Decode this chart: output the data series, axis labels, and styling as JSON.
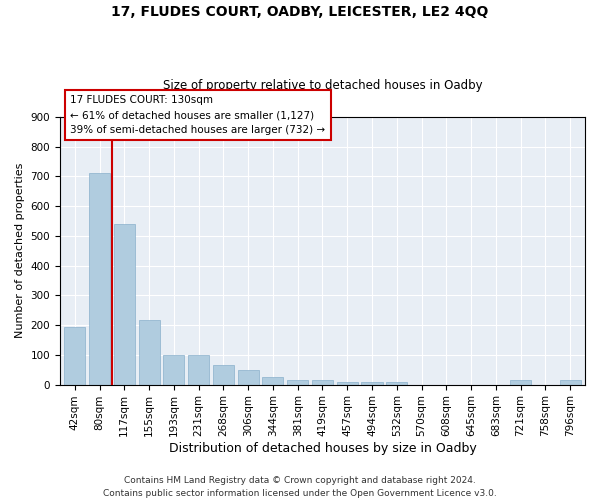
{
  "title1": "17, FLUDES COURT, OADBY, LEICESTER, LE2 4QQ",
  "title2": "Size of property relative to detached houses in Oadby",
  "xlabel": "Distribution of detached houses by size in Oadby",
  "ylabel": "Number of detached properties",
  "categories": [
    "42sqm",
    "80sqm",
    "117sqm",
    "155sqm",
    "193sqm",
    "231sqm",
    "268sqm",
    "306sqm",
    "344sqm",
    "381sqm",
    "419sqm",
    "457sqm",
    "494sqm",
    "532sqm",
    "570sqm",
    "608sqm",
    "645sqm",
    "683sqm",
    "721sqm",
    "758sqm",
    "796sqm"
  ],
  "values": [
    193,
    710,
    540,
    218,
    100,
    100,
    65,
    50,
    27,
    17,
    17,
    10,
    10,
    10,
    0,
    0,
    0,
    0,
    15,
    0,
    15
  ],
  "bar_color": "#b0ccdf",
  "bar_edge_color": "#8ab0cc",
  "vline_color": "#cc0000",
  "vline_x": 1.5,
  "annotation_text": "17 FLUDES COURT: 130sqm\n← 61% of detached houses are smaller (1,127)\n39% of semi-detached houses are larger (732) →",
  "annotation_edge_color": "#cc0000",
  "footer_line1": "Contains HM Land Registry data © Crown copyright and database right 2024.",
  "footer_line2": "Contains public sector information licensed under the Open Government Licence v3.0.",
  "plot_bg_color": "#e8eef5",
  "fig_bg_color": "#ffffff",
  "ylim_max": 900,
  "ytick_step": 100,
  "title1_fontsize": 10,
  "title2_fontsize": 8.5,
  "xlabel_fontsize": 9,
  "ylabel_fontsize": 8,
  "tick_fontsize": 7.5,
  "footer_fontsize": 6.5
}
